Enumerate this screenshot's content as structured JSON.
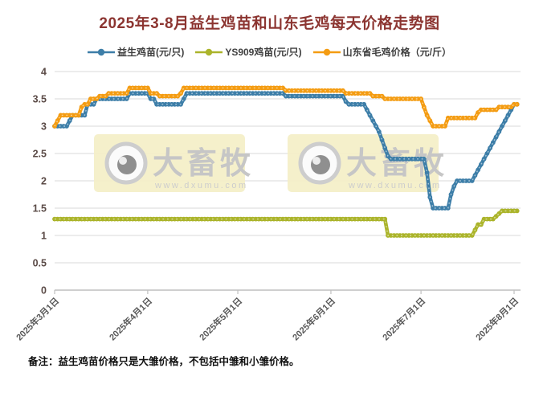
{
  "title": {
    "text": "2025年3-8月益生鸡苗和山东毛鸡每天价格走势图",
    "color": "#8c3531"
  },
  "note": "备注：益生鸡苗价格只是大雏价格，不包括中雏和小雏价格。",
  "watermark": {
    "brand": "大畜牧",
    "url_text": "www.dxumu.com",
    "logo_icon": "eye-logo-icon",
    "box_color": "#f4eec5"
  },
  "colors": {
    "grid": "#d9d9d9",
    "axis": "#bfbfbf",
    "series_yisheng": "#3d7ea8",
    "series_ys909": "#abb42b",
    "series_maoji": "#f49c12"
  },
  "chart_data": {
    "type": "line",
    "title": "2025年3-8月益生鸡苗和山东毛鸡每天价格走势图",
    "xlabel": "",
    "ylabel": "",
    "grid": "horizontal",
    "legend_position": "top",
    "x_axis": {
      "unit": "day",
      "start_date": "2025-03-01",
      "total_days_shown": 155,
      "tick_days": [
        0,
        31,
        61,
        92,
        122,
        153
      ],
      "tick_labels": [
        "2025年3月1日",
        "2025年4月1日",
        "2025年5月1日",
        "2025年6月1日",
        "2025年7月1日",
        "2025年8月1日"
      ]
    },
    "y_axis": {
      "min": 0,
      "max": 4,
      "step": 0.5,
      "tick_labels": [
        "0",
        "0.5",
        "1",
        "1.5",
        "2",
        "2.5",
        "3",
        "3.5",
        "4"
      ]
    },
    "point_encoding": "breakpoints [day_since_2025-03-01, price]; price holds until next breakpoint (daily step data)",
    "series": [
      {
        "name": "益生鸡苗(元/只)",
        "color": "#3d7ea8",
        "points": [
          [
            0,
            3.0
          ],
          [
            5,
            3.1
          ],
          [
            6,
            3.2
          ],
          [
            11,
            3.4
          ],
          [
            14,
            3.5
          ],
          [
            25,
            3.6
          ],
          [
            32,
            3.5
          ],
          [
            34,
            3.4
          ],
          [
            43,
            3.5
          ],
          [
            44,
            3.6
          ],
          [
            77,
            3.55
          ],
          [
            97,
            3.45
          ],
          [
            98,
            3.4
          ],
          [
            104,
            3.3
          ],
          [
            105,
            3.2
          ],
          [
            106,
            3.1
          ],
          [
            107,
            3.0
          ],
          [
            108,
            2.9
          ],
          [
            109,
            2.75
          ],
          [
            110,
            2.6
          ],
          [
            111,
            2.45
          ],
          [
            112,
            2.4
          ],
          [
            124,
            2.15
          ],
          [
            125,
            1.7
          ],
          [
            126,
            1.5
          ],
          [
            132,
            1.75
          ],
          [
            133,
            1.9
          ],
          [
            134,
            2.0
          ],
          [
            140,
            2.1
          ],
          [
            141,
            2.2
          ],
          [
            142,
            2.3
          ],
          [
            143,
            2.4
          ],
          [
            144,
            2.5
          ],
          [
            145,
            2.6
          ],
          [
            146,
            2.7
          ],
          [
            147,
            2.8
          ],
          [
            148,
            2.9
          ],
          [
            149,
            3.0
          ],
          [
            150,
            3.1
          ],
          [
            151,
            3.2
          ],
          [
            152,
            3.3
          ],
          [
            153,
            3.4
          ],
          [
            154,
            3.4
          ]
        ]
      },
      {
        "name": "YS909鸡苗(元/只)",
        "color": "#abb42b",
        "points": [
          [
            0,
            1.3
          ],
          [
            111,
            1.0
          ],
          [
            140,
            1.1
          ],
          [
            141,
            1.2
          ],
          [
            143,
            1.3
          ],
          [
            147,
            1.35
          ],
          [
            148,
            1.4
          ],
          [
            149,
            1.45
          ],
          [
            154,
            1.45
          ]
        ]
      },
      {
        "name": "山东省毛鸡价格（元/斤）",
        "color": "#f49c12",
        "points": [
          [
            0,
            3.0
          ],
          [
            1,
            3.1
          ],
          [
            2,
            3.2
          ],
          [
            9,
            3.35
          ],
          [
            10,
            3.4
          ],
          [
            12,
            3.5
          ],
          [
            15,
            3.55
          ],
          [
            18,
            3.6
          ],
          [
            25,
            3.7
          ],
          [
            32,
            3.6
          ],
          [
            35,
            3.55
          ],
          [
            42,
            3.6
          ],
          [
            43,
            3.7
          ],
          [
            77,
            3.65
          ],
          [
            97,
            3.6
          ],
          [
            106,
            3.55
          ],
          [
            110,
            3.5
          ],
          [
            123,
            3.35
          ],
          [
            124,
            3.2
          ],
          [
            125,
            3.1
          ],
          [
            126,
            3.0
          ],
          [
            131,
            3.15
          ],
          [
            141,
            3.25
          ],
          [
            142,
            3.3
          ],
          [
            148,
            3.35
          ],
          [
            153,
            3.4
          ],
          [
            154,
            3.4
          ]
        ]
      }
    ]
  }
}
